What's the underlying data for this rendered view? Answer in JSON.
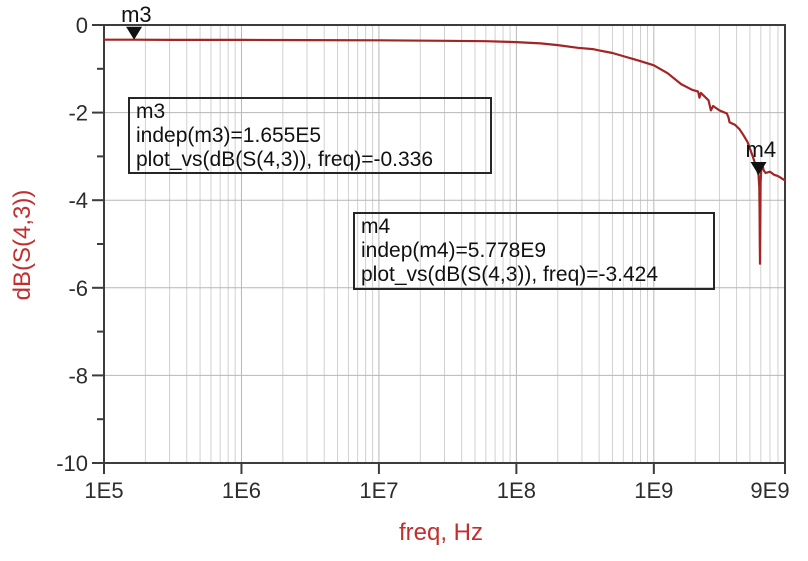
{
  "chart_data": {
    "type": "line",
    "title": "",
    "xlabel": "freq, Hz",
    "ylabel": "dB(S(4,3))",
    "x_scale": "log",
    "x_range": [
      100000.0,
      9000000000.0
    ],
    "y_range": [
      -10,
      0
    ],
    "grid": true,
    "x_tick_labels": [
      "1E5",
      "1E6",
      "1E7",
      "1E8",
      "1E9",
      "9E9"
    ],
    "x_tick_values": [
      100000.0,
      1000000.0,
      10000000.0,
      100000000.0,
      1000000000.0,
      9000000000.0
    ],
    "y_tick_labels": [
      "0",
      "-2",
      "-4",
      "-6",
      "-8",
      "-10"
    ],
    "y_tick_values": [
      0,
      -2,
      -4,
      -6,
      -8,
      -10
    ],
    "y_minor_step_db": 1,
    "series": [
      {
        "name": "dB(S(4,3))",
        "color": "#a32424",
        "points": [
          [
            100000.0,
            -0.336
          ],
          [
            165500.0,
            -0.336
          ],
          [
            300000.0,
            -0.34
          ],
          [
            1000000.0,
            -0.34
          ],
          [
            3000000.0,
            -0.345
          ],
          [
            10000000.0,
            -0.35
          ],
          [
            30000000.0,
            -0.36
          ],
          [
            60000000.0,
            -0.37
          ],
          [
            100000000.0,
            -0.39
          ],
          [
            150000000.0,
            -0.42
          ],
          [
            200000000.0,
            -0.46
          ],
          [
            280000000.0,
            -0.52
          ],
          [
            360000000.0,
            -0.55
          ],
          [
            400000000.0,
            -0.58
          ],
          [
            500000000.0,
            -0.64
          ],
          [
            630000000.0,
            -0.73
          ],
          [
            790000000.0,
            -0.82
          ],
          [
            1000000000.0,
            -0.92
          ],
          [
            1260000000.0,
            -1.1
          ],
          [
            1580000000.0,
            -1.35
          ],
          [
            1900000000.0,
            -1.48
          ],
          [
            2100000000.0,
            -1.52
          ],
          [
            2150000000.0,
            -1.66
          ],
          [
            2200000000.0,
            -1.55
          ],
          [
            2500000000.0,
            -1.72
          ],
          [
            2600000000.0,
            -1.95
          ],
          [
            2700000000.0,
            -1.85
          ],
          [
            3000000000.0,
            -1.95
          ],
          [
            3400000000.0,
            -2.02
          ],
          [
            3500000000.0,
            -2.12
          ],
          [
            3550000000.0,
            -2.22
          ],
          [
            3900000000.0,
            -2.28
          ],
          [
            4200000000.0,
            -2.38
          ],
          [
            4500000000.0,
            -2.52
          ],
          [
            4800000000.0,
            -2.67
          ],
          [
            5000000000.0,
            -2.82
          ],
          [
            5200000000.0,
            -2.97
          ],
          [
            5400000000.0,
            -3.12
          ],
          [
            5600000000.0,
            -3.27
          ],
          [
            5778000000.0,
            -3.424
          ],
          [
            5850000000.0,
            -3.7
          ],
          [
            5880000000.0,
            -4.3
          ],
          [
            5900000000.0,
            -5.0
          ],
          [
            5920000000.0,
            -5.45
          ],
          [
            5950000000.0,
            -4.6
          ],
          [
            5980000000.0,
            -3.6
          ],
          [
            6050000000.0,
            -3.25
          ],
          [
            6100000000.0,
            -3.15
          ],
          [
            6300000000.0,
            -3.32
          ],
          [
            6500000000.0,
            -3.38
          ],
          [
            7000000000.0,
            -3.35
          ],
          [
            7500000000.0,
            -3.42
          ],
          [
            8000000000.0,
            -3.45
          ],
          [
            8500000000.0,
            -3.5
          ],
          [
            9000000000.0,
            -3.55
          ]
        ]
      }
    ],
    "markers": [
      {
        "id": "m3",
        "label": "m3",
        "freq": 165500.0,
        "value_db": -0.336
      },
      {
        "id": "m4",
        "label": "m4",
        "freq": 5778000000.0,
        "value_db": -3.424
      }
    ],
    "annotations": [
      {
        "lines": [
          "m3",
          "indep(m3)=1.655E5",
          "plot_vs(dB(S(4,3)), freq)=-0.336"
        ]
      },
      {
        "lines": [
          "m4",
          "indep(m4)=5.778E9",
          "plot_vs(dB(S(4,3)), freq)=-3.424"
        ]
      }
    ],
    "colors": {
      "trace": "#a32424",
      "axis_title": "#c22f2e",
      "tick_label": "#2d2d2d",
      "grid_major": "#b7b7b7",
      "grid_minor": "#d0d0d0",
      "border": "#3c3c3c",
      "marker": "#111111"
    }
  }
}
